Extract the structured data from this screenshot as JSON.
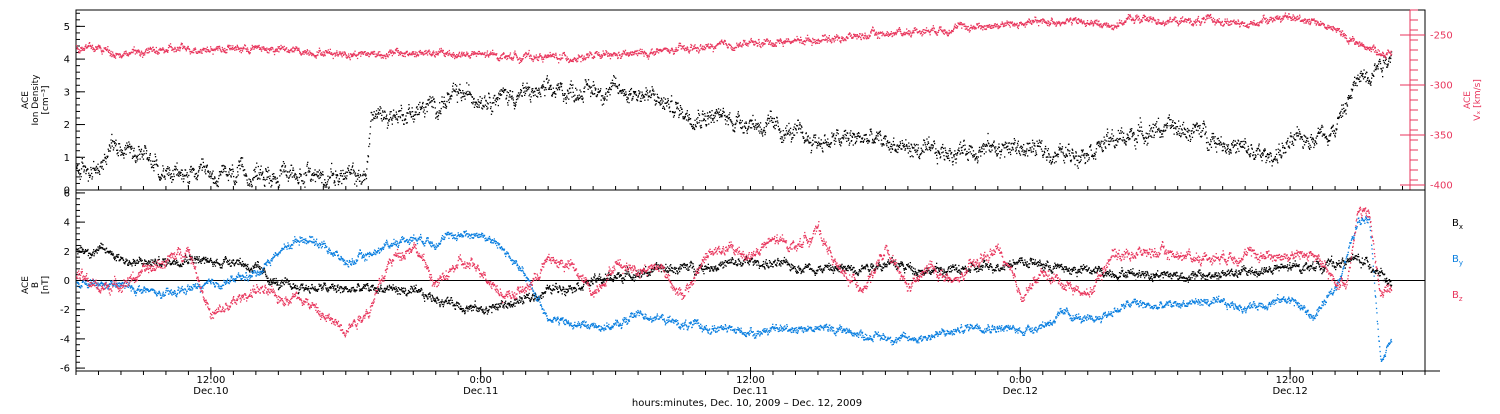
{
  "chart_data": [
    {
      "type": "scatter",
      "panel": "top",
      "x_range_hours": [
        0,
        60
      ],
      "x_origin": "2009-12-10 06:00",
      "left_axis": {
        "label_lines": [
          "ACE",
          "Ion Density",
          "[cm⁻³]"
        ],
        "ylim": [
          0,
          5.5
        ],
        "ticks": [
          0,
          1,
          2,
          3,
          4,
          5
        ],
        "color": "#000000"
      },
      "right_axis": {
        "label_lines": [
          "ACE",
          "Vₓ [km/s]"
        ],
        "ylim": [
          -405,
          -225
        ],
        "ticks": [
          -400,
          -350,
          -300,
          -250
        ],
        "color": "#e8365d"
      },
      "series": [
        {
          "name": "",
          "axis": "left",
          "color": "#000000",
          "knots": [
            [
              0,
              0.6
            ],
            [
              1,
              0.6
            ],
            [
              1.6,
              1.5
            ],
            [
              2.5,
              1.3
            ],
            [
              3.2,
              1.1
            ],
            [
              4,
              0.5
            ],
            [
              6,
              0.4
            ],
            [
              8,
              0.5
            ],
            [
              10,
              0.5
            ],
            [
              12.9,
              0.4
            ],
            [
              13.1,
              2.3
            ],
            [
              14,
              2.3
            ],
            [
              15,
              2.4
            ],
            [
              16,
              2.6
            ],
            [
              17,
              2.9
            ],
            [
              19,
              2.9
            ],
            [
              20,
              2.95
            ],
            [
              23,
              3.1
            ],
            [
              25,
              3.0
            ],
            [
              26,
              2.7
            ],
            [
              27,
              2.4
            ],
            [
              28,
              2.3
            ],
            [
              30,
              2.1
            ],
            [
              31,
              1.9
            ],
            [
              33,
              1.5
            ],
            [
              35,
              1.6
            ],
            [
              37,
              1.3
            ],
            [
              38,
              1.1
            ],
            [
              40,
              1.3
            ],
            [
              42,
              1.3
            ],
            [
              44,
              1.1
            ],
            [
              46,
              1.5
            ],
            [
              48,
              1.9
            ],
            [
              50,
              1.8
            ],
            [
              52,
              1.2
            ],
            [
              53,
              1.0
            ],
            [
              54,
              1.4
            ],
            [
              55,
              1.7
            ],
            [
              56,
              1.9
            ],
            [
              57,
              3.4
            ],
            [
              58.5,
              4.2
            ]
          ],
          "spread": 0.3
        },
        {
          "name": "",
          "axis": "right",
          "color": "#e8365d",
          "knots": [
            [
              0,
              -262
            ],
            [
              1,
              -263
            ],
            [
              2,
              -268
            ],
            [
              5,
              -263
            ],
            [
              8,
              -263
            ],
            [
              12,
              -268
            ],
            [
              16,
              -268
            ],
            [
              20,
              -271
            ],
            [
              22,
              -272
            ],
            [
              24,
              -270
            ],
            [
              26,
              -266
            ],
            [
              28,
              -262
            ],
            [
              30,
              -258
            ],
            [
              34,
              -252
            ],
            [
              38,
              -244
            ],
            [
              42,
              -238
            ],
            [
              44,
              -235
            ],
            [
              46,
              -240
            ],
            [
              47,
              -233
            ],
            [
              49,
              -236
            ],
            [
              51,
              -235
            ],
            [
              52,
              -241
            ],
            [
              53,
              -232
            ],
            [
              55,
              -234
            ],
            [
              56,
              -245
            ],
            [
              57,
              -258
            ],
            [
              58.5,
              -270
            ]
          ],
          "spread": 4
        }
      ]
    },
    {
      "type": "scatter",
      "panel": "bottom",
      "x_range_hours": [
        0,
        60
      ],
      "left_axis": {
        "label_lines": [
          "ACE",
          "B",
          "[nT]"
        ],
        "ylim": [
          -6.2,
          6.2
        ],
        "ticks": [
          -6,
          -4,
          -2,
          0,
          2,
          4,
          6
        ],
        "color": "#000000"
      },
      "zero_line": true,
      "legend": {
        "placement": "right",
        "entries": [
          {
            "base": "B",
            "sub": "x",
            "color": "#000000"
          },
          {
            "base": "B",
            "sub": "y",
            "color": "#0a7fe0"
          },
          {
            "base": "B",
            "sub": "z",
            "color": "#e8365d"
          }
        ]
      },
      "series": [
        {
          "name": "Bx",
          "color": "#000000",
          "knots": [
            [
              0,
              2.2
            ],
            [
              1.5,
              2.0
            ],
            [
              2.5,
              1.2
            ],
            [
              4,
              1.3
            ],
            [
              5,
              1.7
            ],
            [
              6,
              1.2
            ],
            [
              7,
              1.5
            ],
            [
              8,
              0.8
            ],
            [
              9,
              -0.3
            ],
            [
              12,
              -0.6
            ],
            [
              14,
              -0.5
            ],
            [
              16,
              -1.2
            ],
            [
              18,
              -2.0
            ],
            [
              20,
              -1.3
            ],
            [
              21,
              -0.6
            ],
            [
              22,
              -0.3
            ],
            [
              24,
              0.3
            ],
            [
              26,
              0.8
            ],
            [
              28,
              1.0
            ],
            [
              30,
              1.3
            ],
            [
              32,
              1.0
            ],
            [
              34,
              0.8
            ],
            [
              36,
              1.2
            ],
            [
              38,
              0.7
            ],
            [
              40,
              0.8
            ],
            [
              42,
              1.4
            ],
            [
              44,
              0.8
            ],
            [
              46,
              0.6
            ],
            [
              48,
              0.5
            ],
            [
              50,
              0.3
            ],
            [
              52,
              0.6
            ],
            [
              54,
              0.9
            ],
            [
              56,
              1.2
            ],
            [
              57,
              1.5
            ],
            [
              58,
              0.7
            ],
            [
              58.5,
              -0.4
            ]
          ],
          "spread": 0.35
        },
        {
          "name": "By",
          "color": "#0a7fe0",
          "knots": [
            [
              0,
              -0.3
            ],
            [
              2,
              -0.3
            ],
            [
              4,
              -1.0
            ],
            [
              5,
              -0.5
            ],
            [
              6,
              -0.3
            ],
            [
              8,
              0.5
            ],
            [
              9,
              2.0
            ],
            [
              10,
              3.0
            ],
            [
              11,
              2.5
            ],
            [
              12,
              1.2
            ],
            [
              13,
              1.8
            ],
            [
              14,
              2.6
            ],
            [
              15,
              3.0
            ],
            [
              16,
              2.7
            ],
            [
              17,
              3.2
            ],
            [
              18,
              3.2
            ],
            [
              19,
              2.2
            ],
            [
              20,
              0.2
            ],
            [
              21,
              -2.5
            ],
            [
              22,
              -3.0
            ],
            [
              24,
              -3.1
            ],
            [
              25,
              -2.2
            ],
            [
              27,
              -3.0
            ],
            [
              28,
              -3.2
            ],
            [
              30,
              -3.5
            ],
            [
              32,
              -3.2
            ],
            [
              34,
              -3.3
            ],
            [
              35,
              -3.7
            ],
            [
              37,
              -4.0
            ],
            [
              39,
              -3.5
            ],
            [
              40,
              -3.0
            ],
            [
              42,
              -3.4
            ],
            [
              43,
              -3.0
            ],
            [
              44,
              -2.2
            ],
            [
              45,
              -2.8
            ],
            [
              47,
              -1.5
            ],
            [
              48,
              -1.8
            ],
            [
              50,
              -1.4
            ],
            [
              52,
              -1.8
            ],
            [
              54,
              -1.2
            ],
            [
              55,
              -2.5
            ],
            [
              56,
              -0.5
            ],
            [
              57,
              4.0
            ],
            [
              57.5,
              4.6
            ],
            [
              58,
              -5.3
            ],
            [
              58.5,
              -4.0
            ]
          ],
          "spread": 0.3
        },
        {
          "name": "Bz",
          "color": "#e8365d",
          "knots": [
            [
              0,
              0.5
            ],
            [
              1,
              -0.5
            ],
            [
              2,
              -0.2
            ],
            [
              4,
              1.4
            ],
            [
              5,
              2.2
            ],
            [
              6,
              -2.5
            ],
            [
              7,
              -1.5
            ],
            [
              8,
              -0.5
            ],
            [
              9,
              -1.2
            ],
            [
              10,
              -1.0
            ],
            [
              11,
              -2.5
            ],
            [
              12,
              -3.2
            ],
            [
              13,
              -2.0
            ],
            [
              14,
              1.5
            ],
            [
              15,
              2.5
            ],
            [
              16,
              -0.3
            ],
            [
              17,
              1.2
            ],
            [
              18,
              0.8
            ],
            [
              19,
              -1.0
            ],
            [
              20,
              -0.6
            ],
            [
              21,
              1.5
            ],
            [
              22,
              1.0
            ],
            [
              23,
              -0.8
            ],
            [
              24,
              1.2
            ],
            [
              25,
              0.8
            ],
            [
              26,
              1.0
            ],
            [
              27,
              -1.2
            ],
            [
              28,
              1.8
            ],
            [
              29,
              2.2
            ],
            [
              30,
              1.7
            ],
            [
              31,
              2.8
            ],
            [
              32,
              2.4
            ],
            [
              33,
              3.5
            ],
            [
              34,
              0.5
            ],
            [
              35,
              -0.4
            ],
            [
              36,
              2.0
            ],
            [
              37,
              -0.5
            ],
            [
              38,
              1.0
            ],
            [
              39,
              -0.2
            ],
            [
              40,
              1.2
            ],
            [
              41,
              2.2
            ],
            [
              42,
              -1.0
            ],
            [
              43,
              0.5
            ],
            [
              44,
              -0.2
            ],
            [
              45,
              -1.0
            ],
            [
              46,
              1.8
            ],
            [
              48,
              2.0
            ],
            [
              50,
              1.6
            ],
            [
              52,
              1.8
            ],
            [
              54,
              1.7
            ],
            [
              55,
              1.9
            ],
            [
              56,
              -0.2
            ],
            [
              56.5,
              0.0
            ],
            [
              57,
              4.8
            ],
            [
              57.5,
              4.5
            ],
            [
              58,
              -1.0
            ],
            [
              58.5,
              -0.4
            ]
          ],
          "spread": 0.4
        }
      ]
    }
  ],
  "x_axis": {
    "ticks": [
      {
        "hour": 6,
        "time": "12:00",
        "date": "Dec.10"
      },
      {
        "hour": 18,
        "time": "0:00",
        "date": "Dec.11"
      },
      {
        "hour": 30,
        "time": "12:00",
        "date": "Dec.11"
      },
      {
        "hour": 42,
        "time": "0:00",
        "date": "Dec.12"
      },
      {
        "hour": 54,
        "time": "12:00",
        "date": "Dec.12"
      }
    ],
    "title": "hours:minutes, Dec. 10, 2009 – Dec. 12, 2009",
    "minor_step_hours": 1
  }
}
